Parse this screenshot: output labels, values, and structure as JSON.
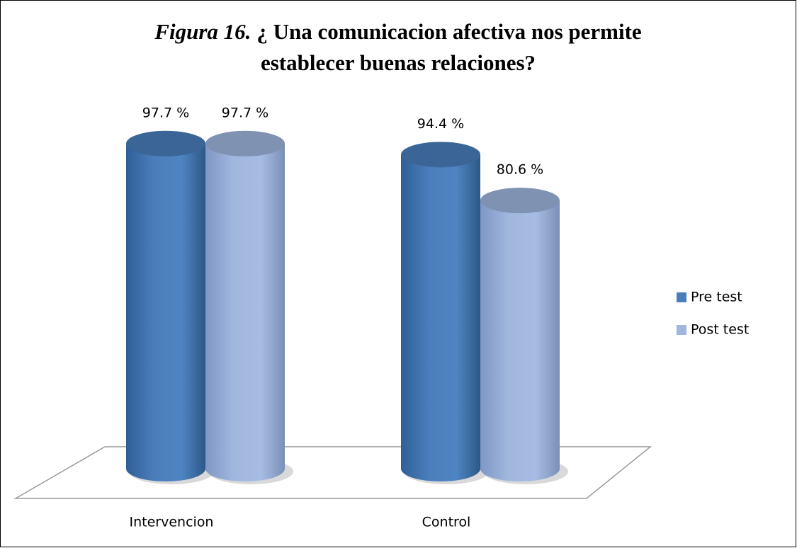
{
  "chart_data": {
    "type": "cylinder-bar",
    "figure_label": "Figura 16.",
    "title": [
      "¿ Una comunicacion afectiva nos permite",
      "establecer buenas relaciones?"
    ],
    "categories": [
      "Intervencion",
      "Control"
    ],
    "series": [
      {
        "name": "Pre test",
        "color": "#4a7ebb",
        "values": [
          97.7,
          94.4
        ],
        "value_labels": [
          "97.7 %",
          "94.4 %"
        ]
      },
      {
        "name": "Post test",
        "color": "#9fb6de",
        "values": [
          97.7,
          80.6
        ],
        "value_labels": [
          "97.7 %",
          "80.6 %"
        ]
      }
    ],
    "ylim": [
      0,
      100
    ],
    "legend": "right"
  }
}
